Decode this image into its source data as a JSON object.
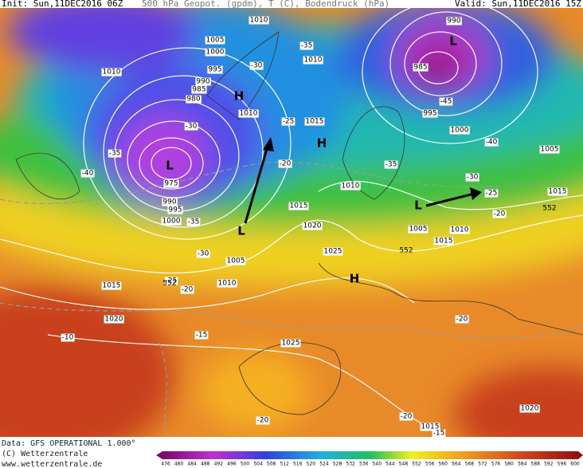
{
  "header": {
    "init": "Init: Sun,11DEC2016 06Z",
    "product": "500 hPa Geopot. (gpdm), T (C), Bodendruck (hPa)",
    "valid": "Valid: Sun,11DEC2016 15Z"
  },
  "footer": {
    "data": "Data: GFS OPERATIONAL 1.000°",
    "copyright": "(C) Wetterzentrale",
    "url": "www.wetterzentrale.de"
  },
  "colorbar": [
    476,
    480,
    484,
    488,
    492,
    496,
    500,
    504,
    508,
    512,
    516,
    520,
    524,
    528,
    532,
    536,
    540,
    544,
    548,
    552,
    556,
    560,
    564,
    568,
    572,
    576,
    580,
    584,
    588,
    592,
    596,
    600
  ],
  "pressure_labels": [
    1010,
    1005,
    1000,
    995,
    990,
    985,
    980,
    1010,
    1010,
    1010,
    1015,
    985,
    990,
    995,
    1000,
    1005,
    975,
    990,
    995,
    1000,
    1015,
    1020,
    1025,
    1010,
    1005,
    1010,
    1015,
    1015,
    1005,
    1010,
    1015,
    1020,
    1025,
    1020,
    1015
  ],
  "temperature_labels": [
    -40,
    -35,
    -30,
    -35,
    -30,
    -25,
    -20,
    -35,
    -40,
    -45,
    -30,
    -25,
    -20,
    -35,
    -30,
    -25,
    -20,
    -15,
    -10,
    -20,
    -20,
    -20,
    -15
  ],
  "height_labels": [
    552,
    552,
    552
  ],
  "pressure_centers": [
    "H",
    "H",
    "H",
    "L",
    "L",
    "L",
    "L"
  ]
}
